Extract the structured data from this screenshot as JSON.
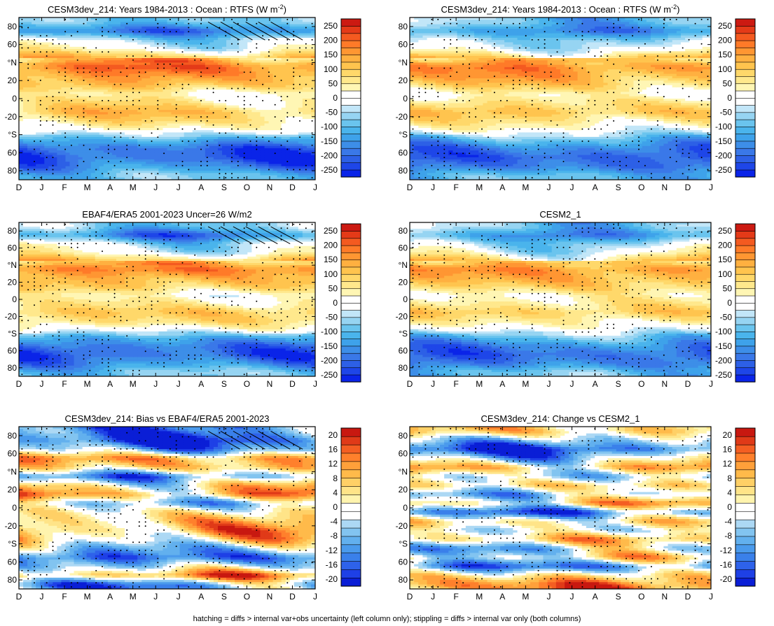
{
  "figure": {
    "footer": "hatching = diffs > internal var+obs uncertainty (left column only); stippling = diffs > internal var only (both columns)"
  },
  "palettes": {
    "full": [
      "#0a24e8",
      "#1e46e8",
      "#2d60e6",
      "#3a78e8",
      "#3d8ee8",
      "#3ea2ea",
      "#4ab4ec",
      "#6ac4ee",
      "#96d4f2",
      "#c2e6f8",
      "#ffffff",
      "#ffffff",
      "#fff6b4",
      "#ffe88c",
      "#ffd86a",
      "#ffc44e",
      "#ffb040",
      "#ff9632",
      "#ff7a28",
      "#f45a20",
      "#e43a18",
      "#cc1a12"
    ],
    "diff": [
      "#0a1ed6",
      "#1e40e6",
      "#2e62ea",
      "#3a80ea",
      "#4a9aec",
      "#62b0ee",
      "#82c4f0",
      "#acd8f4",
      "#ffffff",
      "#ffffff",
      "#fff4ae",
      "#ffe488",
      "#ffd066",
      "#ffba4a",
      "#ffa03a",
      "#ff802c",
      "#f45e22",
      "#e03a18",
      "#c81810"
    ]
  },
  "chart_data": [
    {
      "type": "heatmap",
      "panel": "top-left",
      "title": "CESM3dev_214: Years 1984-2013 : Ocean : RTFS (W m",
      "title_sup": "-2",
      "title_end": ")",
      "palette": "full",
      "colorbar_labels": [
        "250",
        "200",
        "150",
        "100",
        "50",
        "0",
        "-50",
        "-100",
        "-150",
        "-200",
        "-250"
      ],
      "xlim": [
        0,
        13
      ],
      "ylim": [
        -90,
        90
      ],
      "amp": 140,
      "hatching": true,
      "x_ticks": [
        "D",
        "J",
        "F",
        "M",
        "A",
        "M",
        "J",
        "J",
        "A",
        "S",
        "O",
        "N",
        "D",
        "J"
      ],
      "y_ticks": [
        {
          "v": 80,
          "l": "80"
        },
        {
          "v": 60,
          "l": "60"
        },
        {
          "v": 40,
          "l": "°N"
        },
        {
          "v": 20,
          "l": "20"
        },
        {
          "v": 0,
          "l": "0"
        },
        {
          "v": -20,
          "l": "-20"
        },
        {
          "v": -40,
          "l": "°S"
        },
        {
          "v": -60,
          "l": "60"
        },
        {
          "v": -80,
          "l": "80"
        }
      ],
      "zonal_profile": [
        {
          "lat": 85,
          "v": -40
        },
        {
          "lat": 75,
          "v": -90
        },
        {
          "lat": 65,
          "v": -20
        },
        {
          "lat": 55,
          "v": 5
        },
        {
          "lat": 45,
          "v": 60
        },
        {
          "lat": 35,
          "v": 95
        },
        {
          "lat": 25,
          "v": 75
        },
        {
          "lat": 15,
          "v": 55
        },
        {
          "lat": 5,
          "v": 15
        },
        {
          "lat": -5,
          "v": 30
        },
        {
          "lat": -15,
          "v": 55
        },
        {
          "lat": -25,
          "v": 35
        },
        {
          "lat": -35,
          "v": 5
        },
        {
          "lat": -45,
          "v": -60
        },
        {
          "lat": -55,
          "v": -105
        },
        {
          "lat": -65,
          "v": -115
        },
        {
          "lat": -75,
          "v": -90
        },
        {
          "lat": -85,
          "v": -50
        }
      ]
    },
    {
      "type": "heatmap",
      "panel": "top-right",
      "title": "CESM3dev_214: Years 1984-2013 : Ocean : RTFS (W m",
      "title_sup": "-2",
      "title_end": ")",
      "palette": "full",
      "colorbar_labels": [
        "250",
        "200",
        "150",
        "100",
        "50",
        "0",
        "-50",
        "-100",
        "-150",
        "-200",
        "-250"
      ],
      "xlim": [
        0,
        13
      ],
      "ylim": [
        -90,
        90
      ],
      "amp": 140,
      "hatching": false,
      "x_ticks": [
        "D",
        "J",
        "F",
        "M",
        "A",
        "M",
        "J",
        "J",
        "A",
        "S",
        "O",
        "N",
        "D",
        "J"
      ],
      "y_ticks": [
        {
          "v": 80,
          "l": "80"
        },
        {
          "v": 60,
          "l": "60"
        },
        {
          "v": 40,
          "l": "°N"
        },
        {
          "v": 20,
          "l": "20"
        },
        {
          "v": 0,
          "l": "0"
        },
        {
          "v": -20,
          "l": "-20"
        },
        {
          "v": -40,
          "l": "°S"
        },
        {
          "v": -60,
          "l": "60"
        },
        {
          "v": -80,
          "l": "80"
        }
      ],
      "zonal_profile": [
        {
          "lat": 85,
          "v": -45
        },
        {
          "lat": 75,
          "v": -80
        },
        {
          "lat": 65,
          "v": -30
        },
        {
          "lat": 55,
          "v": -5
        },
        {
          "lat": 45,
          "v": 50
        },
        {
          "lat": 35,
          "v": 85
        },
        {
          "lat": 25,
          "v": 70
        },
        {
          "lat": 15,
          "v": 45
        },
        {
          "lat": 5,
          "v": 10
        },
        {
          "lat": -5,
          "v": 35
        },
        {
          "lat": -15,
          "v": 55
        },
        {
          "lat": -25,
          "v": 30
        },
        {
          "lat": -35,
          "v": 0
        },
        {
          "lat": -45,
          "v": -55
        },
        {
          "lat": -55,
          "v": -95
        },
        {
          "lat": -65,
          "v": -110
        },
        {
          "lat": -75,
          "v": -95
        },
        {
          "lat": -85,
          "v": -55
        }
      ]
    },
    {
      "type": "heatmap",
      "panel": "middle-left",
      "title": "EBAF4/ERA5 2001-2023 Uncer=26 W/m2",
      "palette": "full",
      "colorbar_labels": [
        "250",
        "200",
        "150",
        "100",
        "50",
        "0",
        "-50",
        "-100",
        "-150",
        "-200",
        "-250"
      ],
      "xlim": [
        0,
        13
      ],
      "ylim": [
        -90,
        90
      ],
      "amp": 140,
      "hatching": true,
      "x_ticks": [
        "D",
        "J",
        "F",
        "M",
        "A",
        "M",
        "J",
        "J",
        "A",
        "S",
        "O",
        "N",
        "D",
        "J"
      ],
      "y_ticks": [
        {
          "v": 80,
          "l": "80"
        },
        {
          "v": 60,
          "l": "60"
        },
        {
          "v": 40,
          "l": "°N"
        },
        {
          "v": 20,
          "l": "20"
        },
        {
          "v": 0,
          "l": "0"
        },
        {
          "v": -20,
          "l": "-20"
        },
        {
          "v": -40,
          "l": "°S"
        },
        {
          "v": -60,
          "l": "60"
        },
        {
          "v": -80,
          "l": "80"
        }
      ],
      "zonal_profile": [
        {
          "lat": 85,
          "v": -35
        },
        {
          "lat": 75,
          "v": -85
        },
        {
          "lat": 65,
          "v": -15
        },
        {
          "lat": 55,
          "v": 0
        },
        {
          "lat": 45,
          "v": 55
        },
        {
          "lat": 35,
          "v": 90
        },
        {
          "lat": 25,
          "v": 65
        },
        {
          "lat": 15,
          "v": 50
        },
        {
          "lat": 5,
          "v": 10
        },
        {
          "lat": -5,
          "v": 25
        },
        {
          "lat": -15,
          "v": 50
        },
        {
          "lat": -25,
          "v": 40
        },
        {
          "lat": -35,
          "v": 5
        },
        {
          "lat": -45,
          "v": -65
        },
        {
          "lat": -55,
          "v": -100
        },
        {
          "lat": -65,
          "v": -110
        },
        {
          "lat": -75,
          "v": -85
        },
        {
          "lat": -85,
          "v": -45
        }
      ]
    },
    {
      "type": "heatmap",
      "panel": "middle-right",
      "title": "CESM2_1",
      "palette": "full",
      "colorbar_labels": [
        "250",
        "200",
        "150",
        "100",
        "50",
        "0",
        "-50",
        "-100",
        "-150",
        "-200",
        "-250"
      ],
      "xlim": [
        0,
        13
      ],
      "ylim": [
        -90,
        90
      ],
      "amp": 140,
      "hatching": false,
      "x_ticks": [
        "D",
        "J",
        "F",
        "M",
        "A",
        "M",
        "J",
        "J",
        "A",
        "S",
        "O",
        "N",
        "D",
        "J"
      ],
      "y_ticks": [
        {
          "v": 80,
          "l": "80"
        },
        {
          "v": 60,
          "l": "60"
        },
        {
          "v": 40,
          "l": "°N"
        },
        {
          "v": 20,
          "l": "20"
        },
        {
          "v": 0,
          "l": "0"
        },
        {
          "v": -20,
          "l": "-20"
        },
        {
          "v": -40,
          "l": "°S"
        },
        {
          "v": -60,
          "l": "60"
        },
        {
          "v": -80,
          "l": "80"
        }
      ],
      "zonal_profile": [
        {
          "lat": 85,
          "v": -40
        },
        {
          "lat": 75,
          "v": -75
        },
        {
          "lat": 65,
          "v": -25
        },
        {
          "lat": 55,
          "v": 0
        },
        {
          "lat": 45,
          "v": 45
        },
        {
          "lat": 35,
          "v": 80
        },
        {
          "lat": 25,
          "v": 65
        },
        {
          "lat": 15,
          "v": 45
        },
        {
          "lat": 5,
          "v": 15
        },
        {
          "lat": -5,
          "v": 30
        },
        {
          "lat": -15,
          "v": 50
        },
        {
          "lat": -25,
          "v": 25
        },
        {
          "lat": -35,
          "v": -5
        },
        {
          "lat": -45,
          "v": -55
        },
        {
          "lat": -55,
          "v": -90
        },
        {
          "lat": -65,
          "v": -105
        },
        {
          "lat": -75,
          "v": -90
        },
        {
          "lat": -85,
          "v": -50
        }
      ]
    },
    {
      "type": "heatmap",
      "panel": "bottom-left",
      "title": "CESM3dev_214: Bias vs EBAF4/ERA5 2001-2023",
      "palette": "diff",
      "colorbar_labels": [
        "20",
        "16",
        "12",
        "8",
        "4",
        "0",
        "-4",
        "-8",
        "-12",
        "-16",
        "-20"
      ],
      "xlim": [
        0,
        13
      ],
      "ylim": [
        -90,
        90
      ],
      "amp": 20,
      "hatching": true,
      "x_ticks": [
        "D",
        "J",
        "F",
        "M",
        "A",
        "M",
        "J",
        "J",
        "A",
        "S",
        "O",
        "N",
        "D",
        "J"
      ],
      "y_ticks": [
        {
          "v": 80,
          "l": "80"
        },
        {
          "v": 60,
          "l": "60"
        },
        {
          "v": 40,
          "l": "°N"
        },
        {
          "v": 20,
          "l": "20"
        },
        {
          "v": 0,
          "l": "0"
        },
        {
          "v": -20,
          "l": "-20"
        },
        {
          "v": -40,
          "l": "°S"
        },
        {
          "v": -60,
          "l": "60"
        },
        {
          "v": -80,
          "l": "80"
        }
      ],
      "zonal_profile": [
        {
          "lat": 85,
          "v": -12
        },
        {
          "lat": 75,
          "v": -16
        },
        {
          "lat": 65,
          "v": -8
        },
        {
          "lat": 55,
          "v": 10
        },
        {
          "lat": 45,
          "v": 6
        },
        {
          "lat": 35,
          "v": -10
        },
        {
          "lat": 25,
          "v": 4
        },
        {
          "lat": 15,
          "v": 10
        },
        {
          "lat": 5,
          "v": -6
        },
        {
          "lat": -5,
          "v": 2
        },
        {
          "lat": -15,
          "v": 6
        },
        {
          "lat": -25,
          "v": 8
        },
        {
          "lat": -35,
          "v": 4
        },
        {
          "lat": -45,
          "v": -6
        },
        {
          "lat": -55,
          "v": -14
        },
        {
          "lat": -65,
          "v": -4
        },
        {
          "lat": -75,
          "v": 10
        },
        {
          "lat": -85,
          "v": -10
        }
      ]
    },
    {
      "type": "heatmap",
      "panel": "bottom-right",
      "title": "CESM3dev_214: Change vs CESM2_1",
      "palette": "diff",
      "colorbar_labels": [
        "20",
        "16",
        "12",
        "8",
        "4",
        "0",
        "-4",
        "-8",
        "-12",
        "-16",
        "-20"
      ],
      "xlim": [
        0,
        13
      ],
      "ylim": [
        -90,
        90
      ],
      "amp": 20,
      "hatching": false,
      "x_ticks": [
        "D",
        "J",
        "F",
        "M",
        "A",
        "M",
        "J",
        "J",
        "A",
        "S",
        "O",
        "N",
        "D",
        "J"
      ],
      "y_ticks": [
        {
          "v": 80,
          "l": "80"
        },
        {
          "v": 60,
          "l": "60"
        },
        {
          "v": 40,
          "l": "°N"
        },
        {
          "v": 20,
          "l": "20"
        },
        {
          "v": 0,
          "l": "0"
        },
        {
          "v": -20,
          "l": "-20"
        },
        {
          "v": -40,
          "l": "°S"
        },
        {
          "v": -60,
          "l": "60"
        },
        {
          "v": -80,
          "l": "80"
        }
      ],
      "zonal_profile": [
        {
          "lat": 85,
          "v": 6
        },
        {
          "lat": 75,
          "v": -6
        },
        {
          "lat": 65,
          "v": -16
        },
        {
          "lat": 55,
          "v": -4
        },
        {
          "lat": 45,
          "v": 8
        },
        {
          "lat": 35,
          "v": -4
        },
        {
          "lat": 25,
          "v": 4
        },
        {
          "lat": 15,
          "v": -6
        },
        {
          "lat": 5,
          "v": 6
        },
        {
          "lat": -5,
          "v": -12
        },
        {
          "lat": -15,
          "v": 4
        },
        {
          "lat": -25,
          "v": -2
        },
        {
          "lat": -35,
          "v": 6
        },
        {
          "lat": -45,
          "v": -6
        },
        {
          "lat": -55,
          "v": 2
        },
        {
          "lat": -65,
          "v": -12
        },
        {
          "lat": -75,
          "v": 4
        },
        {
          "lat": -85,
          "v": 12
        }
      ]
    }
  ]
}
